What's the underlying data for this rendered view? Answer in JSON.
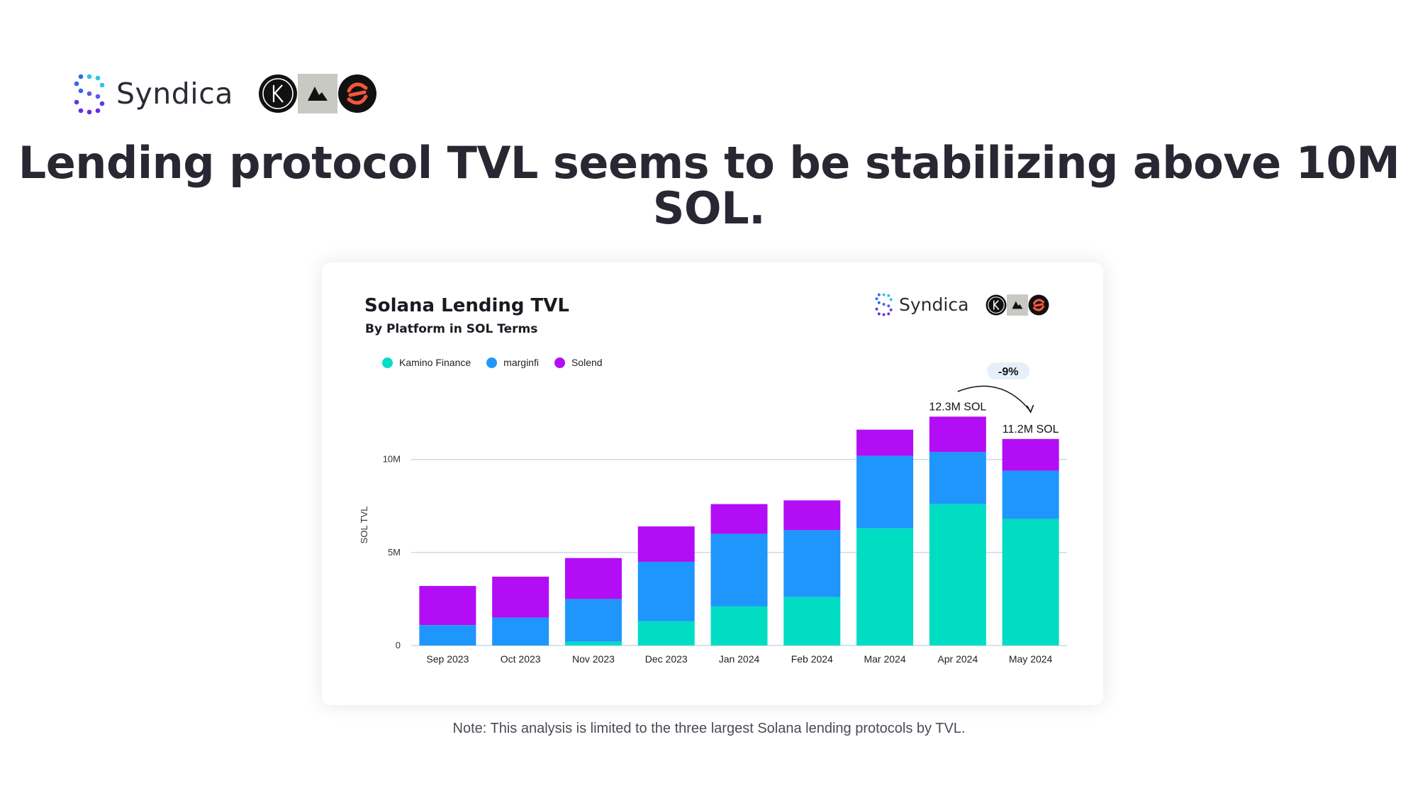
{
  "brand": {
    "name": "Syndica"
  },
  "partners": [
    "kamino-logo-icon",
    "marginfi-logo-icon",
    "solend-logo-icon"
  ],
  "headline": "Lending protocol TVL seems to be stabilizing above 10M SOL.",
  "note": "Note: This analysis is limited to the three largest Solana lending protocols by TVL.",
  "colors": {
    "kamino": "#00DDC3",
    "marginfi": "#1E96FC",
    "solend": "#B30DF5",
    "grid": "#C9DBEA"
  },
  "chart_data": {
    "type": "bar",
    "stacked": true,
    "title": "Solana Lending TVL",
    "subtitle": "By Platform in SOL Terms",
    "xlabel": "",
    "ylabel": "SOL TVL",
    "ylim": [
      0,
      13000000
    ],
    "yticks": [
      0,
      5000000,
      10000000
    ],
    "ytick_labels": [
      "0",
      "5M",
      "10M"
    ],
    "categories": [
      "Sep 2023",
      "Oct 2023",
      "Nov 2023",
      "Dec 2023",
      "Jan 2024",
      "Feb 2024",
      "Mar 2024",
      "Apr 2024",
      "May 2024"
    ],
    "series": [
      {
        "name": "Kamino Finance",
        "color": "#00DDC3",
        "values": [
          0,
          0,
          200000,
          1300000,
          2100000,
          2600000,
          6300000,
          7600000,
          6800000
        ]
      },
      {
        "name": "marginfi",
        "color": "#1E96FC",
        "values": [
          1100000,
          1500000,
          2300000,
          3200000,
          3900000,
          3600000,
          3900000,
          2800000,
          2600000
        ]
      },
      {
        "name": "Solend",
        "color": "#B30DF5",
        "values": [
          2100000,
          2200000,
          2200000,
          1900000,
          1600000,
          1600000,
          1400000,
          1900000,
          1700000
        ]
      }
    ],
    "annotations": [
      {
        "category": "Apr 2024",
        "text": "12.3M SOL"
      },
      {
        "category": "May 2024",
        "text": "11.2M SOL"
      }
    ],
    "change": {
      "from": "Apr 2024",
      "to": "May 2024",
      "text": "-9%"
    },
    "legend_position": "top-left"
  }
}
